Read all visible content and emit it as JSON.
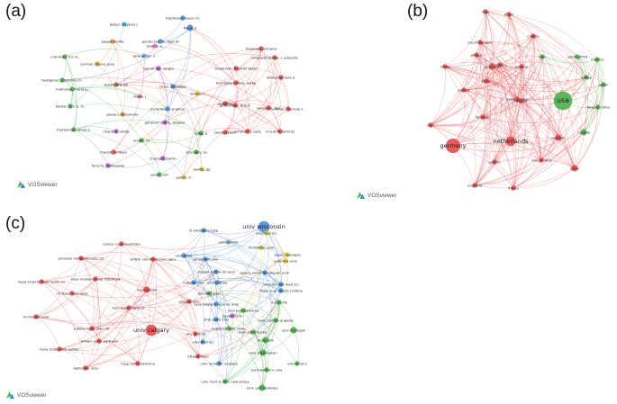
{
  "panels": [
    {
      "id": "a",
      "label": "(a)",
      "watermark": "VOSviewer"
    },
    {
      "id": "b",
      "label": "(b)",
      "watermark": "VOSviewer"
    },
    {
      "id": "c",
      "label": "(c)",
      "watermark": "VOSviewer"
    }
  ],
  "colors": {
    "red": "#e24b4b",
    "green": "#4cb04c",
    "blue": "#4a8fd6",
    "yellow": "#d8c43c",
    "purple": "#a765c8",
    "orange": "#e69a3a",
    "cyan": "#3cc4d8",
    "pink": "#e88ac2",
    "brown": "#b07a4a",
    "lightblue": "#7ab8e6"
  },
  "networks": {
    "a": [
      {
        "t": "friedmann-susan m.",
        "c": "blue",
        "s": 3
      },
      {
        "t": "bates, stephen t.",
        "c": "cyan",
        "s": 3
      },
      {
        "t": "Maas, jl",
        "c": "blue",
        "s": 4
      },
      {
        "t": "jaeger-bonfio",
        "c": "orange",
        "s": 3
      },
      {
        "t": "gundu-rao, bl, fold, jd",
        "c": "blue",
        "s": 3
      },
      {
        "t": "tavera, e.",
        "c": "pink",
        "s": 3
      },
      {
        "t": "crammer, ms m.",
        "c": "green",
        "s": 3
      },
      {
        "t": "carmon, maria, jose",
        "c": "orange",
        "s": 3
      },
      {
        "t": "bernanlier, sergio",
        "c": "purple",
        "s": 3
      },
      {
        "t": "ekwuadier, s",
        "c": "lightblue",
        "s": 3
      },
      {
        "t": "hantgeran, giovanna m.",
        "c": "green",
        "s": 3
      },
      {
        "t": "mahoney, maria p.",
        "c": "green",
        "s": 3
      },
      {
        "t": "doetsberg, bn",
        "c": "brown",
        "s": 3
      },
      {
        "t": "toyei, giuseppe",
        "c": "blue",
        "s": 3
      },
      {
        "t": "lanyer, r",
        "c": "yellow",
        "s": 3
      },
      {
        "t": "dialaj, l",
        "c": "pink",
        "s": 3
      },
      {
        "t": "barker, d. j. e. m.",
        "c": "green",
        "s": 3
      },
      {
        "t": "mackenzie, johan p.",
        "c": "green",
        "s": 3
      },
      {
        "t": "greenu, dkramerie",
        "c": "orange",
        "s": 3
      },
      {
        "t": "mcfadden, j prahlad",
        "c": "blue",
        "s": 3
      },
      {
        "t": "gimenez marin, angelia",
        "c": "purple",
        "s": 3
      },
      {
        "t": "chandra, amita",
        "c": "purple",
        "s": 3
      },
      {
        "t": "dang, a",
        "c": "green",
        "s": 3
      },
      {
        "t": "lanyie, rh",
        "c": "green",
        "s": 3
      },
      {
        "t": "monod, andean",
        "c": "red",
        "s": 3
      },
      {
        "t": "chandra, harish",
        "c": "purple",
        "s": 3
      },
      {
        "t": "elrvinger, ss",
        "c": "green",
        "s": 3
      },
      {
        "t": "furuchi, yoshiaraha",
        "c": "purple",
        "s": 3
      },
      {
        "t": "baddo, gp",
        "c": "yellow",
        "s": 3
      },
      {
        "t": "yeom, sdn",
        "c": "green",
        "s": 3
      },
      {
        "t": "gulick, m",
        "c": "yellow",
        "s": 3
      },
      {
        "t": "fresarian, armand",
        "c": "red",
        "s": 3
      },
      {
        "t": "villarreal-zavala, j. eduardo",
        "c": "red",
        "s": 3
      },
      {
        "t": "broomhall, mounts peter",
        "c": "red",
        "s": 3
      },
      {
        "t": "rodriguez, kyle e.",
        "c": "red",
        "s": 3
      },
      {
        "t": "bernasconi-dave, jaeke",
        "c": "red",
        "s": 3
      },
      {
        "t": "grandpre",
        "c": "red",
        "s": 3
      },
      {
        "t": "pomerleau, bruun",
        "c": "red",
        "s": 3
      },
      {
        "t": "nakamae, ken",
        "c": "red",
        "s": 3
      },
      {
        "t": "ummar, michele k.",
        "c": "red",
        "s": 3
      },
      {
        "t": "tanrocayaan",
        "c": "red",
        "s": 3
      },
      {
        "t": "schwarz, j. pete",
        "c": "red",
        "s": 3
      },
      {
        "t": "mccahill, samuel",
        "c": "red",
        "s": 3
      }
    ],
    "b": [
      {
        "t": "chai",
        "c": "red",
        "s": 3
      },
      {
        "t": "brazil",
        "c": "red",
        "s": 3
      },
      {
        "t": "croatia",
        "c": "red",
        "s": 3
      },
      {
        "t": "czech republic",
        "c": "red",
        "s": 3
      },
      {
        "t": "norway",
        "c": "red",
        "s": 3
      },
      {
        "t": "south africa",
        "c": "green",
        "s": 3
      },
      {
        "t": "mexico",
        "c": "green",
        "s": 3
      },
      {
        "t": "greece",
        "c": "red",
        "s": 3
      },
      {
        "t": "romania",
        "c": "red",
        "s": 3
      },
      {
        "t": "iran",
        "c": "green",
        "s": 3
      },
      {
        "t": "turkey",
        "c": "green",
        "s": 3
      },
      {
        "t": "japan",
        "c": "green",
        "s": 3
      },
      {
        "t": "China",
        "c": "red",
        "s": 3
      },
      {
        "t": "australia",
        "c": "red",
        "s": 4
      },
      {
        "t": "korea",
        "c": "red",
        "s": 3
      },
      {
        "t": "Taiwan, china",
        "c": "green",
        "s": 3
      },
      {
        "t": "usa",
        "c": "green",
        "s": 9
      },
      {
        "t": "poland",
        "c": "red",
        "s": 3
      },
      {
        "t": "saudi arabia",
        "c": "red",
        "s": 3
      },
      {
        "t": "england",
        "c": "red",
        "s": 4
      },
      {
        "t": "Belgium",
        "c": "red",
        "s": 3
      },
      {
        "t": "sweden",
        "c": "red",
        "s": 3
      },
      {
        "t": "canada",
        "c": "green",
        "s": 4
      },
      {
        "t": "iran",
        "c": "red",
        "s": 3
      },
      {
        "t": "germany",
        "c": "red",
        "s": 7
      },
      {
        "t": "netherlands",
        "c": "red",
        "s": 6
      },
      {
        "t": "austria",
        "c": "red",
        "s": 3
      },
      {
        "t": "switzerland",
        "c": "red",
        "s": 3
      },
      {
        "t": "spain",
        "c": "red",
        "s": 4
      },
      {
        "t": "scotland",
        "c": "red",
        "s": 3
      },
      {
        "t": "france",
        "c": "red",
        "s": 3
      }
    ],
    "c": [
      {
        "t": "univ wisconsin",
        "c": "blue",
        "s": 7
      },
      {
        "t": "st elizabeth hosp",
        "c": "blue",
        "s": 3
      },
      {
        "t": "univ oxford",
        "c": "lightblue",
        "s": 3
      },
      {
        "t": "erasmus mc",
        "c": "yellow",
        "s": 3
      },
      {
        "t": "cancer care manitoba",
        "c": "red",
        "s": 3
      },
      {
        "t": "mcmaster univ",
        "c": "yellow",
        "s": 3
      },
      {
        "t": "princess margaret canc ctr",
        "c": "red",
        "s": 3
      },
      {
        "t": "british columbia canc agcy",
        "c": "red",
        "s": 3
      },
      {
        "t": "univ dulut",
        "c": "blue",
        "s": 3
      },
      {
        "t": "argos neurogrp",
        "c": "yellow",
        "s": 3
      },
      {
        "t": "vanderbilt univ",
        "c": "blue",
        "s": 3
      },
      {
        "t": "erasmus univ",
        "c": "yellow",
        "s": 3
      },
      {
        "t": "oregon hlth & sci univ",
        "c": "blue",
        "s": 3
      },
      {
        "t": "hosp maisonneuve rosemont",
        "c": "red",
        "s": 3
      },
      {
        "t": "peace nome himalayan univ",
        "c": "blue",
        "s": 3
      },
      {
        "t": "royal victoria hosp north ctr",
        "c": "red",
        "s": 3
      },
      {
        "t": "indiana univ",
        "c": "blue",
        "s": 3
      },
      {
        "t": "univ buffalo",
        "c": "blue",
        "s": 3
      },
      {
        "t": "all india inst med sci",
        "c": "blue",
        "s": 3
      },
      {
        "t": "sunnybrook",
        "c": "red",
        "s": 4
      },
      {
        "t": "ctr hosp univ laval",
        "c": "red",
        "s": 3
      },
      {
        "t": "harvard univ",
        "c": "green",
        "s": 3
      },
      {
        "t": "fiona univ sancta cristina",
        "c": "blue",
        "s": 3
      },
      {
        "t": "queens univ",
        "c": "red",
        "s": 3
      },
      {
        "t": "case western reserve univ",
        "c": "blue",
        "s": 3
      },
      {
        "t": "univ pennsylvania",
        "c": "green",
        "s": 3
      },
      {
        "t": "tom baker canc ctr",
        "c": "red",
        "s": 3
      },
      {
        "t": "mayo clin",
        "c": "green",
        "s": 3
      },
      {
        "t": "mcmaster univ",
        "c": "red",
        "s": 3
      },
      {
        "t": "jubilee hosp canc ctr",
        "c": "red",
        "s": 3
      },
      {
        "t": "boston univ",
        "c": "purple",
        "s": 3
      },
      {
        "t": "ohio state univ",
        "c": "blue",
        "s": 3
      },
      {
        "t": "univ calif los angeles",
        "c": "green",
        "s": 3
      },
      {
        "t": "univ calgary",
        "c": "red",
        "s": 7
      },
      {
        "t": "william osler partners",
        "c": "red",
        "s": 3
      },
      {
        "t": "univ utrecht",
        "c": "red",
        "s": 3
      },
      {
        "t": "sapienza univ rome",
        "c": "green",
        "s": 3
      },
      {
        "t": "univ manchester",
        "c": "green",
        "s": 3
      },
      {
        "t": "univ michigan",
        "c": "green",
        "s": 4
      },
      {
        "t": "nova scotia hlth author",
        "c": "red",
        "s": 3
      },
      {
        "t": "univ toronto",
        "c": "blue",
        "s": 3
      },
      {
        "t": "duke univ",
        "c": "green",
        "s": 4
      },
      {
        "t": "univ washington",
        "c": "green",
        "s": 4
      },
      {
        "t": "dalhousie univ",
        "c": "red",
        "s": 3
      },
      {
        "t": "ottawa hosp",
        "c": "red",
        "s": 3
      },
      {
        "t": "hosp salud valencia",
        "c": "red",
        "s": 3
      },
      {
        "t": "univ rome tor vergata",
        "c": "blue",
        "s": 3
      },
      {
        "t": "northwestern univ",
        "c": "green",
        "s": 3
      },
      {
        "t": "emory univ",
        "c": "green",
        "s": 3
      },
      {
        "t": "univ med & dent new jersey",
        "c": "green",
        "s": 3
      },
      {
        "t": "univ calif berkeley",
        "c": "green",
        "s": 4
      }
    ]
  }
}
